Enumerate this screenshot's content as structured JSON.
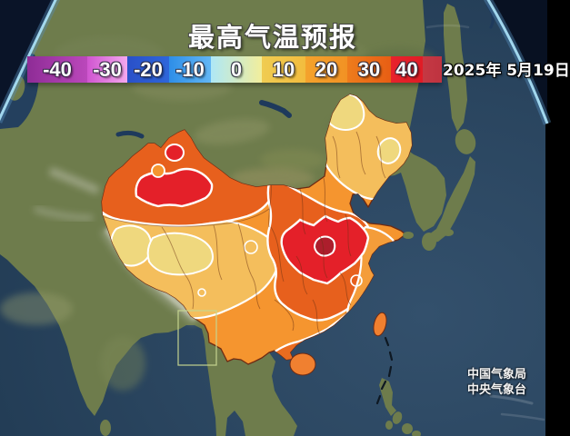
{
  "header": {
    "title": "最高气温预报",
    "date": "2025年 5月19日"
  },
  "legend": {
    "description": "temperature scale in degrees Celsius",
    "values": [
      -40,
      -30,
      -20,
      -10,
      0,
      10,
      20,
      30,
      40
    ],
    "segments": [
      {
        "label": "-40",
        "c1": "#8E2C96",
        "c2": "#BB48BB"
      },
      {
        "label": "-30",
        "c1": "#D055D0",
        "c2": "#F4A8EE"
      },
      {
        "label": "-20",
        "c1": "#2A50C8",
        "c2": "#2E66DA"
      },
      {
        "label": "-10",
        "c1": "#2E8EE8",
        "c2": "#62B6F4"
      },
      {
        "label": "0",
        "c1": "#AEE8F6",
        "c2": "#F2EE9C"
      },
      {
        "label": "10",
        "c1": "#F0CC52",
        "c2": "#F2BC3E"
      },
      {
        "label": "20",
        "c1": "#F4A22C",
        "c2": "#F29224"
      },
      {
        "label": "30",
        "c1": "#EE7C1C",
        "c2": "#E85E14"
      },
      {
        "label": "40",
        "c1": "#E8232C",
        "c2": "#E01C26"
      },
      {
        "label": "",
        "c1": "#C53843",
        "c2": "#BE3340"
      }
    ]
  },
  "watermark": {
    "line1": "中国气象局",
    "line2": "中央气象台"
  },
  "map_colors": {
    "sea": "#2A455F",
    "land_green": "#6E7C4C",
    "china_base_orange": "#F5952F",
    "band_amber": "#F4BE5C",
    "band_yellow": "#EFD87E",
    "band_dark_orange": "#E7601D",
    "band_south_orange": "#EA6C20",
    "band_red": "#E42029",
    "band_dark_red_core": "#AC1E2C",
    "contour_white": "#FFFFFF",
    "country_border": "#6E2A12",
    "globe_glow": "#A8DEF4"
  }
}
